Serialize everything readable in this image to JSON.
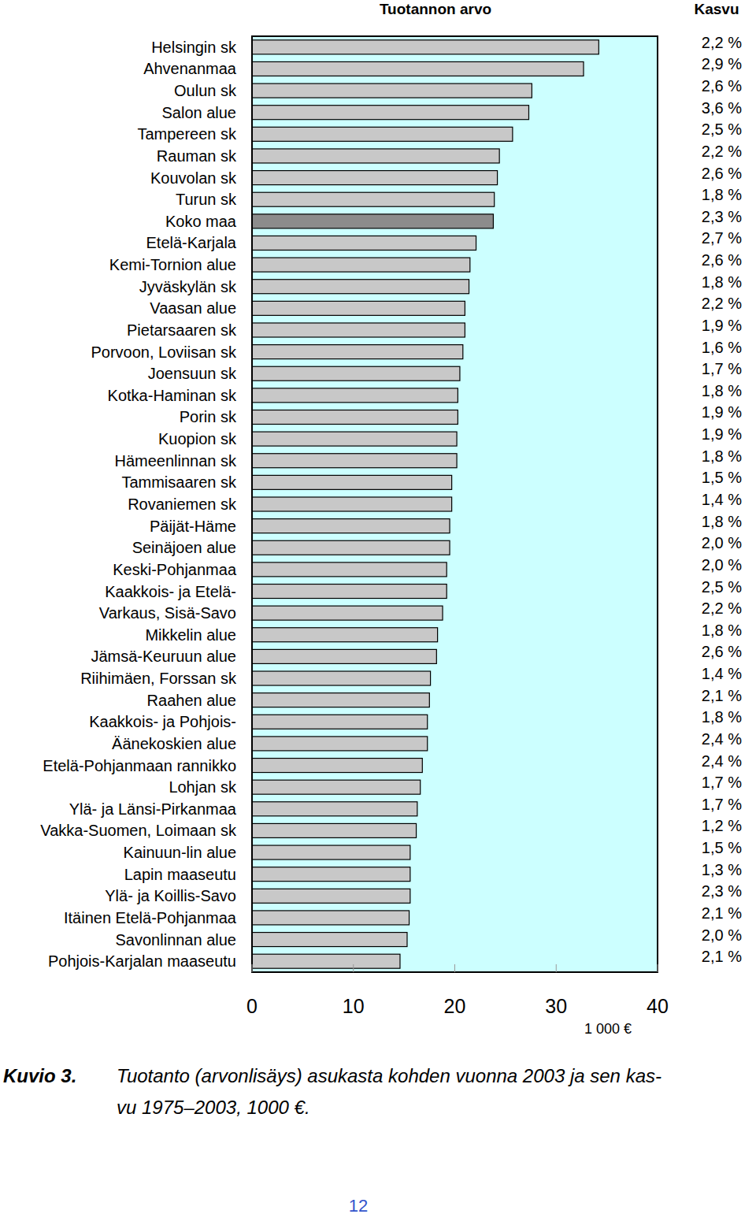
{
  "chart_data": {
    "type": "bar",
    "orientation": "horizontal",
    "title": "Tuotannon arvo",
    "growth_title": "Kasvu",
    "x_unit_label": "1 000 €",
    "caption_label": "Kuvio 3.",
    "caption_lines": [
      "Tuotanto (arvonlisäys) asukasta kohden vuonna 2003 ja sen kas-",
      "vu 1975–2003, 1000 €."
    ],
    "page_number": "12",
    "categories": [
      "Helsingin sk",
      "Ahvenanmaa",
      "Oulun sk",
      "Salon alue",
      "Tampereen sk",
      "Rauman sk",
      "Kouvolan sk",
      "Turun sk",
      "Koko maa",
      "Etelä-Karjala",
      "Kemi-Tornion alue",
      "Jyväskylän sk",
      "Vaasan alue",
      "Pietarsaaren sk",
      "Porvoon, Loviisan sk",
      "Joensuun sk",
      "Kotka-Haminan sk",
      "Porin sk",
      "Kuopion sk",
      "Hämeenlinnan sk",
      "Tammisaaren sk",
      "Rovaniemen sk",
      "Päijät-Häme",
      "Seinäjoen alue",
      "Keski-Pohjanmaa",
      "Kaakkois- ja Etelä-",
      "Varkaus, Sisä-Savo",
      "Mikkelin alue",
      "Jämsä-Keuruun alue",
      "Riihimäen, Forssan sk",
      "Raahen alue",
      "Kaakkois- ja Pohjois-",
      "Äänekoskien alue",
      "Etelä-Pohjanmaan rannikko",
      "Lohjan sk",
      "Ylä- ja Länsi-Pirkanmaa",
      "Vakka-Suomen, Loimaan sk",
      "Kainuun-lin alue",
      "Lapin maaseutu",
      "Ylä- ja Koillis-Savo",
      "Itäinen Etelä-Pohjanmaa",
      "Savonlinnan alue",
      "Pohjois-Karjalan maaseutu"
    ],
    "values": [
      34.2,
      32.7,
      27.6,
      27.3,
      25.7,
      24.4,
      24.2,
      23.9,
      23.8,
      22.1,
      21.5,
      21.4,
      21.0,
      21.0,
      20.8,
      20.5,
      20.3,
      20.3,
      20.2,
      20.2,
      19.7,
      19.7,
      19.5,
      19.5,
      19.2,
      19.2,
      18.8,
      18.3,
      18.2,
      17.6,
      17.5,
      17.3,
      17.3,
      16.8,
      16.6,
      16.3,
      16.2,
      15.6,
      15.6,
      15.6,
      15.5,
      15.3,
      14.6
    ],
    "growth_labels": [
      "2,2 %",
      "2,9 %",
      "2,6 %",
      "3,6 %",
      "2,5 %",
      "2,2 %",
      "2,6 %",
      "1,8 %",
      "2,3 %",
      "2,7 %",
      "2,6 %",
      "1,8 %",
      "2,2 %",
      "1,9 %",
      "1,6 %",
      "1,7 %",
      "1,8 %",
      "1,9 %",
      "1,9 %",
      "1,8 %",
      "1,5 %",
      "1,4 %",
      "1,8 %",
      "2,0 %",
      "2,0 %",
      "2,5 %",
      "2,2 %",
      "1,8 %",
      "2,6 %",
      "1,4 %",
      "2,1 %",
      "1,8 %",
      "2,4 %",
      "2,4 %",
      "1,7 %",
      "1,7 %",
      "1,2 %",
      "1,5 %",
      "1,3 %",
      "2,3 %",
      "2,1 %",
      "2,0 %",
      "2,1 %"
    ],
    "colors": [
      "#c8c8c8",
      "#c8c8c8",
      "#c8c8c8",
      "#c8c8c8",
      "#c8c8c8",
      "#c8c8c8",
      "#c8c8c8",
      "#c8c8c8",
      "#8c8c8c",
      "#c8c8c8",
      "#c8c8c8",
      "#c8c8c8",
      "#c8c8c8",
      "#c8c8c8",
      "#c8c8c8",
      "#c8c8c8",
      "#c8c8c8",
      "#c8c8c8",
      "#c8c8c8",
      "#c8c8c8",
      "#c8c8c8",
      "#c8c8c8",
      "#c8c8c8",
      "#c8c8c8",
      "#c8c8c8",
      "#c8c8c8",
      "#c8c8c8",
      "#c8c8c8",
      "#c8c8c8",
      "#c8c8c8",
      "#c8c8c8",
      "#c8c8c8",
      "#c8c8c8",
      "#c8c8c8",
      "#c8c8c8",
      "#c8c8c8",
      "#c8c8c8",
      "#c8c8c8",
      "#c8c8c8",
      "#c8c8c8",
      "#c8c8c8",
      "#c8c8c8",
      "#c8c8c8"
    ],
    "xlim": [
      0,
      40
    ],
    "xticks": [
      0,
      10,
      20,
      30,
      40
    ],
    "grid": false
  }
}
